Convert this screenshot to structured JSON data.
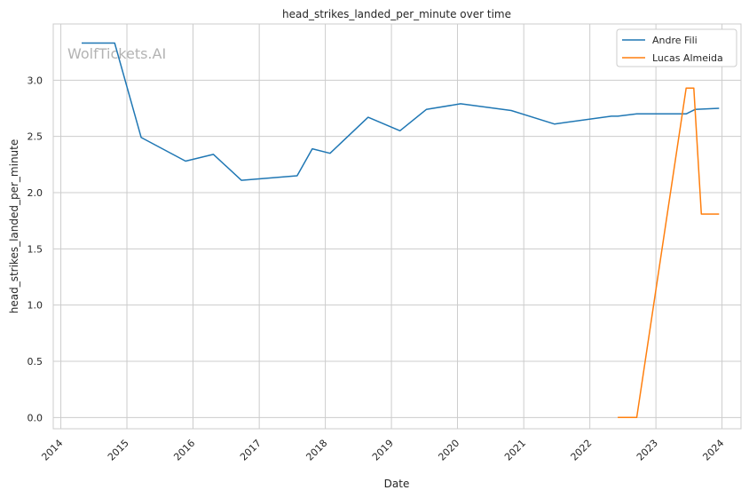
{
  "chart_data": {
    "type": "line",
    "title": "head_strikes_landed_per_minute over time",
    "xlabel": "Date",
    "ylabel": "head_strikes_landed_per_minute",
    "watermark": "WolfTickets.AI",
    "x_range": [
      "2013-11-20",
      "2024-04-15"
    ],
    "y_range": [
      -0.1,
      3.5
    ],
    "x_ticks": [
      "2014",
      "2015",
      "2016",
      "2017",
      "2018",
      "2019",
      "2020",
      "2021",
      "2022",
      "2023",
      "2024"
    ],
    "y_ticks": [
      "0.0",
      "0.5",
      "1.0",
      "1.5",
      "2.0",
      "2.5",
      "3.0"
    ],
    "grid": true,
    "legend_position": "top-right",
    "series": [
      {
        "name": "Andre Fili",
        "color": "#1f77b4",
        "points": [
          [
            "2014-04-26",
            3.33
          ],
          [
            "2014-10-25",
            3.33
          ],
          [
            "2015-03-21",
            2.49
          ],
          [
            "2015-11-21",
            2.28
          ],
          [
            "2016-04-23",
            2.34
          ],
          [
            "2016-09-24",
            2.11
          ],
          [
            "2017-07-29",
            2.15
          ],
          [
            "2017-10-21",
            2.39
          ],
          [
            "2018-01-27",
            2.35
          ],
          [
            "2018-08-25",
            2.67
          ],
          [
            "2019-02-17",
            2.55
          ],
          [
            "2019-07-13",
            2.74
          ],
          [
            "2020-01-18",
            2.79
          ],
          [
            "2020-10-24",
            2.73
          ],
          [
            "2021-06-19",
            2.61
          ],
          [
            "2022-04-30",
            2.68
          ],
          [
            "2022-06-04",
            2.68
          ],
          [
            "2022-09-17",
            2.7
          ],
          [
            "2023-06-17",
            2.7
          ],
          [
            "2023-08-05",
            2.74
          ],
          [
            "2023-12-16",
            2.75
          ]
        ]
      },
      {
        "name": "Lucas Almeida",
        "color": "#ff7f0e",
        "points": [
          [
            "2022-06-04",
            0.0
          ],
          [
            "2022-09-17",
            0.0
          ],
          [
            "2023-06-17",
            2.93
          ],
          [
            "2023-07-29",
            2.93
          ],
          [
            "2023-09-09",
            1.81
          ],
          [
            "2023-12-16",
            1.81
          ]
        ]
      }
    ]
  }
}
